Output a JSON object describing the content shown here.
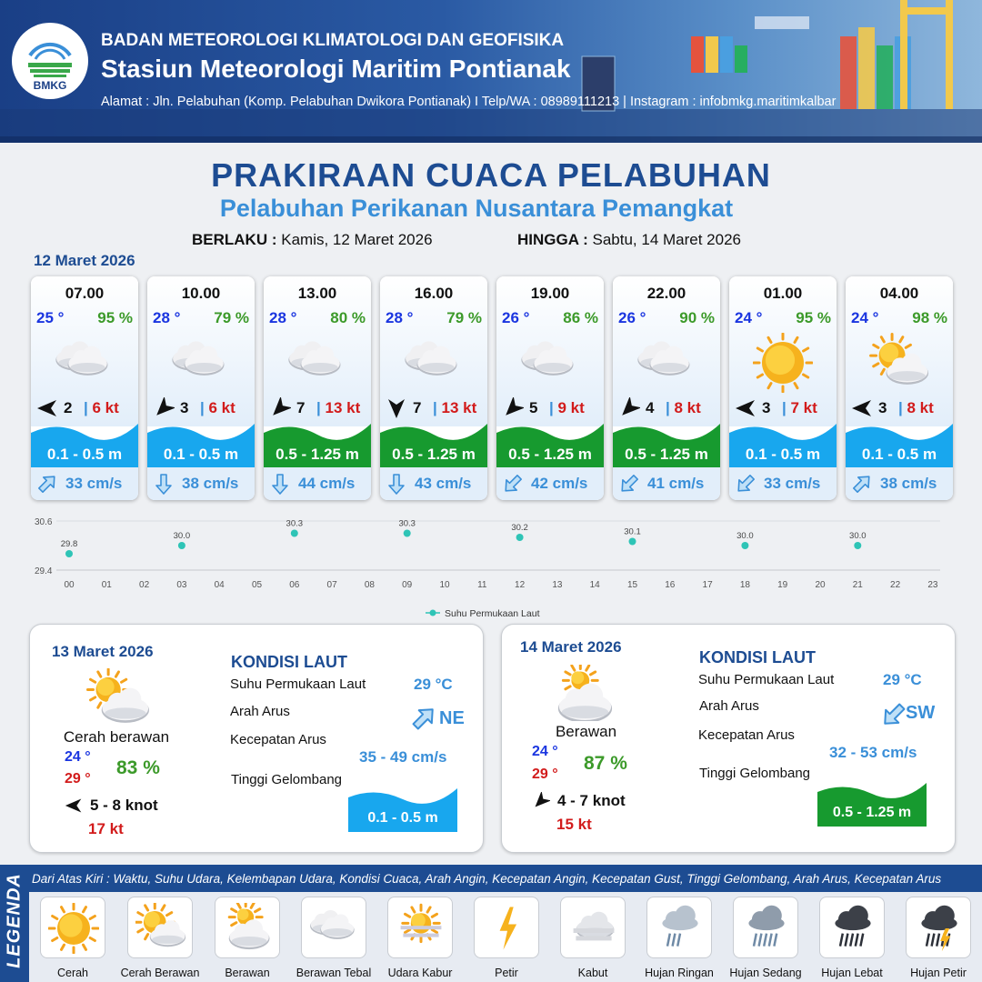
{
  "header": {
    "org": "BADAN METEOROLOGI KLIMATOLOGI DAN GEOFISIKA",
    "station": "Stasiun Meteorologi Maritim Pontianak",
    "address": "Alamat : Jln. Pelabuhan (Komp. Pelabuhan Dwikora Pontianak) I Telp/WA : 08989111213 | Instagram : infobmkg.maritimkalbar",
    "logo_text": "BMKG"
  },
  "title": "PRAKIRAAN CUACA PELABUHAN",
  "subtitle": "Pelabuhan Perikanan Nusantara Pemangkat",
  "validity": {
    "from_label": "BERLAKU :",
    "from_value": "Kamis, 12 Maret 2026",
    "to_label": "HINGGA :",
    "to_value": "Sabtu, 14 Maret 2026"
  },
  "day1": {
    "date": "12 Maret 2026",
    "cards": [
      {
        "time": "07.00",
        "temp": "25 °",
        "hum": "95 %",
        "icon": "berawan-tebal-icon",
        "wind": "2",
        "gust": "6 kt",
        "wind_dir": "W",
        "wave": "0.1 - 0.5 m",
        "wave_level": "low",
        "current": "33 cm/s",
        "current_dir": "NE"
      },
      {
        "time": "10.00",
        "temp": "28 °",
        "hum": "79 %",
        "icon": "berawan-tebal-icon",
        "wind": "3",
        "gust": "6 kt",
        "wind_dir": "SW",
        "wave": "0.1 - 0.5 m",
        "wave_level": "low",
        "current": "38 cm/s",
        "current_dir": "S"
      },
      {
        "time": "13.00",
        "temp": "28 °",
        "hum": "80 %",
        "icon": "berawan-tebal-icon",
        "wind": "7",
        "gust": "13 kt",
        "wind_dir": "SW",
        "wave": "0.5 - 1.25 m",
        "wave_level": "moderate",
        "current": "44 cm/s",
        "current_dir": "S"
      },
      {
        "time": "16.00",
        "temp": "28 °",
        "hum": "79 %",
        "icon": "berawan-tebal-icon",
        "wind": "7",
        "gust": "13 kt",
        "wind_dir": "S",
        "wave": "0.5 - 1.25 m",
        "wave_level": "moderate",
        "current": "43 cm/s",
        "current_dir": "S"
      },
      {
        "time": "19.00",
        "temp": "26 °",
        "hum": "86 %",
        "icon": "berawan-tebal-icon",
        "wind": "5",
        "gust": "9 kt",
        "wind_dir": "SW",
        "wave": "0.5 - 1.25 m",
        "wave_level": "moderate",
        "current": "42 cm/s",
        "current_dir": "SW"
      },
      {
        "time": "22.00",
        "temp": "26 °",
        "hum": "90 %",
        "icon": "berawan-tebal-icon",
        "wind": "4",
        "gust": "8 kt",
        "wind_dir": "SW",
        "wave": "0.5 - 1.25 m",
        "wave_level": "moderate",
        "current": "41 cm/s",
        "current_dir": "SW"
      },
      {
        "time": "01.00",
        "temp": "24 °",
        "hum": "95 %",
        "icon": "cerah-icon",
        "wind": "3",
        "gust": "7 kt",
        "wind_dir": "W",
        "wave": "0.1 - 0.5 m",
        "wave_level": "low",
        "current": "33 cm/s",
        "current_dir": "SW"
      },
      {
        "time": "04.00",
        "temp": "24 °",
        "hum": "98 %",
        "icon": "cerah-berawan-icon",
        "wind": "3",
        "gust": "8 kt",
        "wind_dir": "W",
        "wave": "0.1 - 0.5 m",
        "wave_level": "low",
        "current": "38 cm/s",
        "current_dir": "NE"
      }
    ]
  },
  "chart_data": {
    "type": "scatter",
    "x_ticks": [
      "00",
      "01",
      "02",
      "03",
      "04",
      "05",
      "06",
      "07",
      "08",
      "09",
      "10",
      "11",
      "12",
      "13",
      "14",
      "15",
      "16",
      "17",
      "18",
      "19",
      "20",
      "21",
      "22",
      "23"
    ],
    "x": [
      0,
      3,
      6,
      9,
      12,
      15,
      18,
      21
    ],
    "y": [
      29.8,
      30.0,
      30.3,
      30.3,
      30.2,
      30.1,
      30.0,
      30.0
    ],
    "point_labels": [
      "29.8",
      "30.0",
      "30.3",
      "30.3",
      "30.2",
      "30.1",
      "30.0",
      "30.0"
    ],
    "y_ticks": [
      "30.6",
      "29.4"
    ],
    "ylim": [
      29.4,
      30.6
    ],
    "legend": "Suhu Permukaan Laut",
    "legend_position": "bottom",
    "grid": true,
    "color": "#2ec4b6"
  },
  "day2": {
    "date": "13 Maret 2026",
    "condition": "Cerah berawan",
    "icon": "cerah-berawan-icon",
    "temp_min": "24 °",
    "temp_max": "29 °",
    "hum": "83 %",
    "wind": "5  - 8 knot",
    "wind_dir": "W",
    "gust": "17 kt",
    "sea_title": "KONDISI LAUT",
    "sst_label": "Suhu Permukaan Laut",
    "sst": "29 °C",
    "dir_label": "Arah Arus",
    "current_dir": "NE",
    "speed_label": "Kecepatan Arus",
    "current_speed": "35 - 49 cm/s",
    "wave_label": "Tinggi Gelombang",
    "wave": "0.1 - 0.5 m",
    "wave_level": "low"
  },
  "day3": {
    "date": "14 Maret 2026",
    "condition": "Berawan",
    "icon": "berawan-icon",
    "temp_min": "24 °",
    "temp_max": "29 °",
    "hum": "87 %",
    "wind": "4  - 7 knot",
    "wind_dir": "SW",
    "gust": "15 kt",
    "sea_title": "KONDISI LAUT",
    "sst_label": "Suhu Permukaan Laut",
    "sst": "29 °C",
    "dir_label": "Arah Arus",
    "current_dir": "SW",
    "speed_label": "Kecepatan Arus",
    "current_speed": "32 - 53 cm/s",
    "wave_label": "Tinggi Gelombang",
    "wave": "0.5 - 1.25 m",
    "wave_level": "moderate"
  },
  "legend": {
    "title": "LEGENDA",
    "description": "Dari Atas Kiri : Waktu, Suhu Udara, Kelembapan Udara, Kondisi Cuaca, Arah Angin, Kecepatan Angin, Kecepatan Gust, Tinggi Gelombang, Arah Arus, Kecepatan Arus",
    "items": [
      {
        "label": "Cerah",
        "icon": "cerah-icon"
      },
      {
        "label": "Cerah Berawan",
        "icon": "cerah-berawan-icon"
      },
      {
        "label": "Berawan",
        "icon": "berawan-icon"
      },
      {
        "label": "Berawan Tebal",
        "icon": "berawan-tebal-icon"
      },
      {
        "label": "Udara Kabur",
        "icon": "udara-kabur-icon"
      },
      {
        "label": "Petir",
        "icon": "petir-icon"
      },
      {
        "label": "Kabut",
        "icon": "kabut-icon"
      },
      {
        "label": "Hujan Ringan",
        "icon": "hujan-ringan-icon"
      },
      {
        "label": "Hujan Sedang",
        "icon": "hujan-sedang-icon"
      },
      {
        "label": "Hujan Lebat",
        "icon": "hujan-lebat-icon"
      },
      {
        "label": "Hujan Petir",
        "icon": "hujan-petir-icon"
      }
    ]
  },
  "colors": {
    "wave_low": "#18a7ee",
    "wave_moderate": "#179a2f",
    "title": "#1d4c92",
    "accent": "#3a8fd8"
  }
}
